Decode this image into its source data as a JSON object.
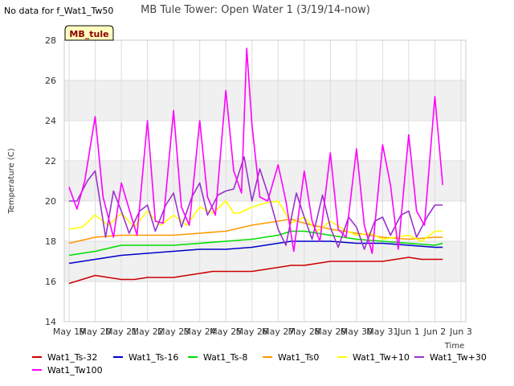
{
  "note": "No data for f_Wat1_Tw50",
  "chart_data": {
    "type": "line",
    "title": "MB Tule Tower: Open Water 1 (3/19/14-now)",
    "site_label": "MB_tule",
    "xlabel": "Time",
    "ylabel": "Temperature (C)",
    "ylim": [
      14,
      28
    ],
    "yticks": [
      14,
      16,
      18,
      20,
      22,
      24,
      26,
      28
    ],
    "xlim": [
      0,
      15
    ],
    "xtick_labels": [
      "May 19",
      "May 20",
      "May 21",
      "May 22",
      "May 23",
      "May 24",
      "May 25",
      "May 26",
      "May 27",
      "May 28",
      "May 29",
      "May 30",
      "May 31",
      "Jun 1",
      "Jun 2",
      "Jun 3"
    ],
    "bands": [
      [
        16,
        18
      ],
      [
        20,
        22
      ],
      [
        24,
        26
      ]
    ],
    "series": [
      {
        "name": "Wat1_Ts-32",
        "color": "#cc0000",
        "x": [
          0,
          0.5,
          1,
          1.5,
          2,
          2.5,
          3,
          3.5,
          4,
          4.5,
          5,
          5.5,
          6,
          6.5,
          7,
          7.5,
          8,
          8.5,
          9,
          9.5,
          10,
          10.5,
          11,
          11.5,
          12,
          12.5,
          13,
          13.5,
          14,
          14.3
        ],
        "y": [
          15.9,
          16.1,
          16.3,
          16.2,
          16.1,
          16.1,
          16.2,
          16.2,
          16.2,
          16.3,
          16.4,
          16.5,
          16.5,
          16.5,
          16.5,
          16.6,
          16.7,
          16.8,
          16.8,
          16.9,
          17.0,
          17.0,
          17.0,
          17.0,
          17.0,
          17.1,
          17.2,
          17.1,
          17.1,
          17.1
        ]
      },
      {
        "name": "Wat1_Ts-16",
        "color": "#0000cc",
        "x": [
          0,
          1,
          2,
          3,
          4,
          5,
          6,
          7,
          8,
          8.5,
          9,
          10,
          11,
          12,
          13,
          14,
          14.3
        ],
        "y": [
          16.9,
          17.1,
          17.3,
          17.4,
          17.5,
          17.6,
          17.6,
          17.7,
          17.9,
          18.0,
          18.0,
          18.0,
          17.9,
          17.9,
          17.8,
          17.7,
          17.7
        ]
      },
      {
        "name": "Wat1_Ts-8",
        "color": "#00dd00",
        "x": [
          0,
          1,
          2,
          3,
          4,
          5,
          6,
          7,
          8,
          8.5,
          9,
          10,
          11,
          12,
          13,
          14,
          14.3
        ],
        "y": [
          17.3,
          17.5,
          17.8,
          17.8,
          17.8,
          17.9,
          18.0,
          18.1,
          18.3,
          18.5,
          18.5,
          18.3,
          18.1,
          18.0,
          17.9,
          17.8,
          17.9
        ]
      },
      {
        "name": "Wat1_Ts0",
        "color": "#ff9900",
        "x": [
          0,
          1,
          2,
          3,
          4,
          5,
          6,
          7,
          8,
          8.5,
          9,
          10,
          11,
          12,
          13,
          14,
          14.3
        ],
        "y": [
          17.9,
          18.2,
          18.3,
          18.3,
          18.3,
          18.4,
          18.5,
          18.8,
          19.0,
          19.1,
          18.9,
          18.6,
          18.4,
          18.2,
          18.1,
          18.2,
          18.2
        ]
      },
      {
        "name": "Wat1_Tw+10",
        "color": "#ffff00",
        "x": [
          0,
          0.5,
          1,
          1.5,
          2,
          2.5,
          3,
          3.5,
          4,
          4.5,
          5,
          5.5,
          6,
          6.3,
          6.5,
          7,
          7.5,
          8,
          8.5,
          9,
          9.5,
          10,
          10.5,
          11,
          11.5,
          12,
          12.5,
          13,
          13.5,
          14,
          14.3
        ],
        "y": [
          18.6,
          18.7,
          19.3,
          18.8,
          19.4,
          18.7,
          19.5,
          18.8,
          19.3,
          18.8,
          19.7,
          19.4,
          20.0,
          19.4,
          19.4,
          19.7,
          19.9,
          20.0,
          18.9,
          19.2,
          18.5,
          19.0,
          18.6,
          18.3,
          18.4,
          18.1,
          18.2,
          18.3,
          18.0,
          18.5,
          18.5
        ]
      },
      {
        "name": "Wat1_Tw+30",
        "color": "#9933cc",
        "x": [
          0,
          0.3,
          0.7,
          1,
          1.4,
          1.7,
          2,
          2.3,
          2.7,
          3,
          3.3,
          3.7,
          4,
          4.3,
          4.7,
          5,
          5.3,
          5.7,
          6,
          6.3,
          6.7,
          7,
          7.3,
          7.7,
          8,
          8.3,
          8.7,
          9,
          9.3,
          9.7,
          10,
          10.3,
          10.7,
          11,
          11.3,
          11.7,
          12,
          12.3,
          12.7,
          13,
          13.3,
          13.7,
          14,
          14.3
        ],
        "y": [
          20.0,
          20.0,
          21.0,
          21.5,
          18.2,
          20.5,
          19.5,
          18.4,
          19.5,
          19.8,
          18.5,
          19.8,
          20.4,
          18.7,
          20.2,
          20.9,
          19.3,
          20.3,
          20.5,
          20.6,
          22.2,
          20.0,
          21.6,
          20.0,
          18.6,
          17.8,
          20.4,
          19.2,
          18.1,
          20.3,
          18.7,
          17.7,
          19.2,
          18.7,
          17.6,
          19.0,
          19.2,
          18.3,
          19.3,
          19.5,
          18.2,
          19.2,
          19.8,
          19.8
        ]
      },
      {
        "name": "Wat1_Tw100",
        "color": "#ff00ff",
        "x": [
          0,
          0.3,
          0.6,
          1,
          1.3,
          1.7,
          2,
          2.3,
          2.6,
          3,
          3.3,
          3.6,
          4,
          4.3,
          4.6,
          5,
          5.3,
          5.6,
          6,
          6.3,
          6.6,
          6.8,
          7,
          7.3,
          7.6,
          8,
          8.3,
          8.6,
          9,
          9.3,
          9.6,
          10,
          10.3,
          10.6,
          11,
          11.3,
          11.6,
          12,
          12.3,
          12.6,
          13,
          13.3,
          13.6,
          14,
          14.3
        ],
        "y": [
          20.7,
          19.6,
          21.0,
          24.2,
          20.2,
          18.2,
          20.9,
          19.6,
          18.3,
          24.0,
          19.0,
          18.9,
          24.5,
          19.7,
          18.8,
          24.0,
          20.2,
          19.3,
          25.5,
          21.5,
          20.4,
          27.6,
          23.8,
          20.2,
          20.0,
          21.8,
          20.0,
          17.5,
          21.5,
          19.0,
          18.0,
          22.4,
          18.6,
          18.2,
          22.6,
          18.8,
          17.4,
          22.8,
          20.8,
          17.6,
          23.3,
          19.5,
          18.8,
          25.2,
          20.8
        ]
      }
    ]
  }
}
